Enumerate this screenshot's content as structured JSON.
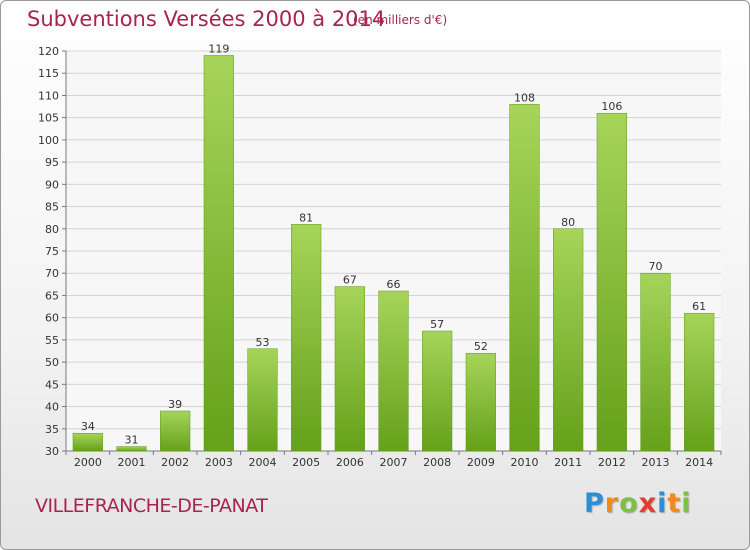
{
  "header": {
    "title": "Subventions Versées 2000 à 2014",
    "subtitle": "(en milliers d'€)"
  },
  "footer": {
    "place": "VILLEFRANCHE-DE-PANAT",
    "logo_letters": [
      "P",
      "r",
      "o",
      "x",
      "i",
      "t",
      "i"
    ],
    "logo_colors": [
      "#2a8fd6",
      "#f08a1c",
      "#7cc242",
      "#e53b2c",
      "#2a8fd6",
      "#f08a1c",
      "#7cc242"
    ]
  },
  "colors": {
    "bar_light": "#a6d45a",
    "bar_dark": "#65a11a",
    "title": "#a8244f",
    "grid": "#d4d4d4",
    "axis": "#7a7a7a"
  },
  "chart_data": {
    "type": "bar",
    "title": "Subventions Versées 2000 à 2014",
    "subtitle": "(en milliers d'€)",
    "categories": [
      "2000",
      "2001",
      "2002",
      "2003",
      "2004",
      "2005",
      "2006",
      "2007",
      "2008",
      "2009",
      "2010",
      "2011",
      "2012",
      "2013",
      "2014"
    ],
    "values": [
      34,
      31,
      39,
      119,
      53,
      81,
      67,
      66,
      57,
      52,
      108,
      80,
      106,
      70,
      61
    ],
    "ylim": [
      30,
      120
    ],
    "yticks": [
      30,
      35,
      40,
      45,
      50,
      55,
      60,
      65,
      70,
      75,
      80,
      85,
      90,
      95,
      100,
      105,
      110,
      115,
      120
    ],
    "grid": true,
    "data_labels": true
  }
}
